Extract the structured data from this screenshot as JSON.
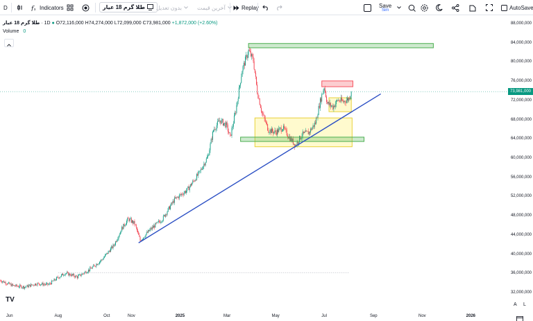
{
  "toolbar": {
    "interval": "D",
    "indicators_label": "Indicators",
    "symbol": "طلا گرم 18 عیار",
    "adjust_label": "بدون تعدیل",
    "price_type_label": "آخرین قیمت",
    "replay_label": "Replay",
    "save_label": "Save",
    "save_sub": "Sim",
    "autosave_label": "AutoSave"
  },
  "legend": {
    "symbol": "طلا گرم 18 عیار",
    "interval": "1D",
    "open": "O72,116,000",
    "high": "H74,274,000",
    "low": "L72,099,000",
    "close": "C73,981,000",
    "change": "+1,872,000 (+2.60%)",
    "volume_label": "Volume",
    "volume_value": "0"
  },
  "axis": {
    "price_tag": "73,981,000",
    "a_label": "A",
    "l_label": "L",
    "logo": "TV"
  },
  "colors": {
    "up": "#089981",
    "down": "#f23645",
    "trendline": "#2b4fc4",
    "green_zone": "#4caf50",
    "yellow_zone": "#f7e04b",
    "red_zone": "#f7525f"
  },
  "icons": [
    "interval-icon",
    "indicators-icon",
    "templates-icon",
    "alert-icon",
    "undo-icon",
    "redo-icon",
    "layout-icon",
    "settings-icon",
    "theme-icon",
    "share-icon",
    "fullscreen-icon",
    "snapshot-icon",
    "calendar-icon"
  ],
  "chart_data": {
    "type": "candlestick",
    "title": "",
    "xlabel": "",
    "ylabel": "",
    "ylim": [
      30000000,
      88000000
    ],
    "y_ticks": [
      32000000,
      36000000,
      40000000,
      44000000,
      48000000,
      52000000,
      56000000,
      60000000,
      64000000,
      68000000,
      72000000,
      76000000,
      80000000,
      84000000,
      88000000
    ],
    "y_tick_labels": [
      "32,000,000",
      "36,000,000",
      "40,000,000",
      "44,000,000",
      "48,000,000",
      "52,000,000",
      "56,000,000",
      "60,000,000",
      "64,000,000",
      "68,000,000",
      "72,000,000",
      "76,000,000",
      "80,000,000",
      "84,000,000",
      "88,000,000"
    ],
    "x_ticks": [
      "Jun",
      "Aug",
      "Oct",
      "Nov",
      "2025",
      "Mar",
      "May",
      "Jul",
      "Sep",
      "Nov",
      "2026"
    ],
    "x_tick_dates": [
      "2024-06-01",
      "2024-08-01",
      "2024-10-01",
      "2024-11-01",
      "2025-01-01",
      "2025-03-01",
      "2025-05-01",
      "2025-07-01",
      "2025-09-01",
      "2025-11-01",
      "2026-01-01"
    ],
    "x_range": [
      "2024-05-20",
      "2026-02-15"
    ],
    "last_price": 73981000,
    "path": [
      [
        "2024-05-20",
        34700000
      ],
      [
        "2024-06-05",
        33600000
      ],
      [
        "2024-06-20",
        33300000
      ],
      [
        "2024-07-05",
        34000000
      ],
      [
        "2024-07-20",
        33800000
      ],
      [
        "2024-08-01",
        35300000
      ],
      [
        "2024-08-10",
        36200000
      ],
      [
        "2024-08-25",
        35400000
      ],
      [
        "2024-09-10",
        37000000
      ],
      [
        "2024-09-25",
        39000000
      ],
      [
        "2024-10-10",
        42000000
      ],
      [
        "2024-10-20",
        45500000
      ],
      [
        "2024-10-28",
        47500000
      ],
      [
        "2024-11-05",
        46500000
      ],
      [
        "2024-11-12",
        43000000
      ],
      [
        "2024-11-25",
        45300000
      ],
      [
        "2024-12-10",
        47500000
      ],
      [
        "2024-12-25",
        51500000
      ],
      [
        "2025-01-10",
        53500000
      ],
      [
        "2025-01-25",
        57000000
      ],
      [
        "2025-02-05",
        60500000
      ],
      [
        "2025-02-12",
        66000000
      ],
      [
        "2025-02-20",
        68000000
      ],
      [
        "2025-02-28",
        67000000
      ],
      [
        "2025-03-05",
        64500000
      ],
      [
        "2025-03-12",
        70000000
      ],
      [
        "2025-03-20",
        78500000
      ],
      [
        "2025-03-28",
        82500000
      ],
      [
        "2025-04-03",
        80500000
      ],
      [
        "2025-04-08",
        74000000
      ],
      [
        "2025-04-14",
        69500000
      ],
      [
        "2025-04-22",
        66000000
      ],
      [
        "2025-05-01",
        65500000
      ],
      [
        "2025-05-10",
        66500000
      ],
      [
        "2025-05-18",
        64500000
      ],
      [
        "2025-05-26",
        62800000
      ],
      [
        "2025-06-03",
        65000000
      ],
      [
        "2025-06-12",
        65500000
      ],
      [
        "2025-06-20",
        67500000
      ],
      [
        "2025-06-26",
        72000000
      ],
      [
        "2025-07-01",
        75000000
      ],
      [
        "2025-07-05",
        71500000
      ],
      [
        "2025-07-12",
        70800000
      ],
      [
        "2025-07-18",
        72200000
      ],
      [
        "2025-07-25",
        71900000
      ],
      [
        "2025-08-01",
        72500000
      ],
      [
        "2025-08-04",
        73981000
      ]
    ],
    "annotations": {
      "trendline": {
        "from": [
          "2024-11-10",
          42500000
        ],
        "to": [
          "2025-09-10",
          73500000
        ]
      },
      "green_zones": [
        {
          "from": [
            "2025-03-28",
            84000000
          ],
          "to": [
            "2025-11-15",
            83100000
          ]
        },
        {
          "from": [
            "2025-03-18",
            64500000
          ],
          "to": [
            "2025-08-20",
            63600000
          ]
        }
      ],
      "yellow_zones": [
        {
          "from": [
            "2025-04-05",
            68500000
          ],
          "to": [
            "2025-08-05",
            62500000
          ]
        },
        {
          "from": [
            "2025-07-07",
            72700000
          ],
          "to": [
            "2025-08-04",
            69800000
          ]
        }
      ],
      "red_zones": [
        {
          "from": [
            "2025-06-28",
            76200000
          ],
          "to": [
            "2025-08-06",
            75000000
          ]
        }
      ],
      "dotted_levels": [
        {
          "price": 36300000,
          "from": "2024-08-01",
          "to": "2025-08-01"
        }
      ]
    }
  }
}
